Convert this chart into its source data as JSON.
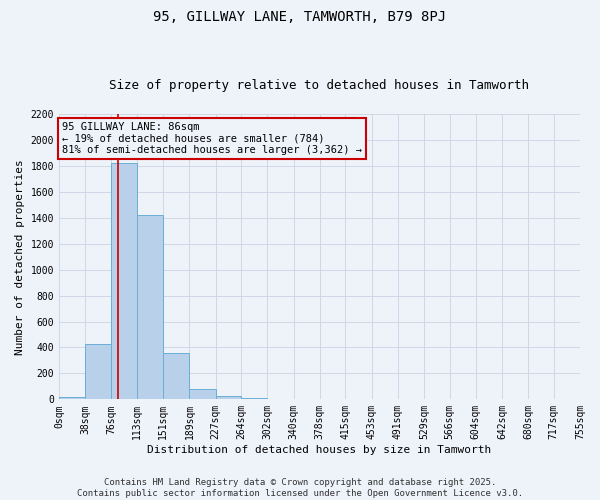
{
  "title": "95, GILLWAY LANE, TAMWORTH, B79 8PJ",
  "subtitle": "Size of property relative to detached houses in Tamworth",
  "xlabel": "Distribution of detached houses by size in Tamworth",
  "ylabel": "Number of detached properties",
  "property_size": 86,
  "annotation_line1": "95 GILLWAY LANE: 86sqm",
  "annotation_line2": "← 19% of detached houses are smaller (784)",
  "annotation_line3": "81% of semi-detached houses are larger (3,362) →",
  "footer": "Contains HM Land Registry data © Crown copyright and database right 2025.\nContains public sector information licensed under the Open Government Licence v3.0.",
  "bin_edges": [
    0,
    38,
    76,
    113,
    151,
    189,
    227,
    264,
    302,
    340,
    378,
    415,
    453,
    491,
    529,
    566,
    604,
    642,
    680,
    717,
    755
  ],
  "bar_heights": [
    15,
    425,
    1820,
    1420,
    360,
    80,
    28,
    10,
    5,
    3,
    2,
    1,
    1,
    0,
    0,
    0,
    0,
    0,
    0,
    0
  ],
  "bar_color": "#b8d0ea",
  "bar_edge_color": "#6aaed6",
  "red_line_color": "#cc0000",
  "annotation_box_color": "#cc0000",
  "grid_color": "#d0d8e8",
  "background_color": "#eef2f9",
  "ylim": [
    0,
    2200
  ],
  "title_fontsize": 10,
  "subtitle_fontsize": 9,
  "ylabel_fontsize": 8,
  "xlabel_fontsize": 8,
  "tick_fontsize": 7,
  "annotation_fontsize": 7.5,
  "footer_fontsize": 6.5
}
